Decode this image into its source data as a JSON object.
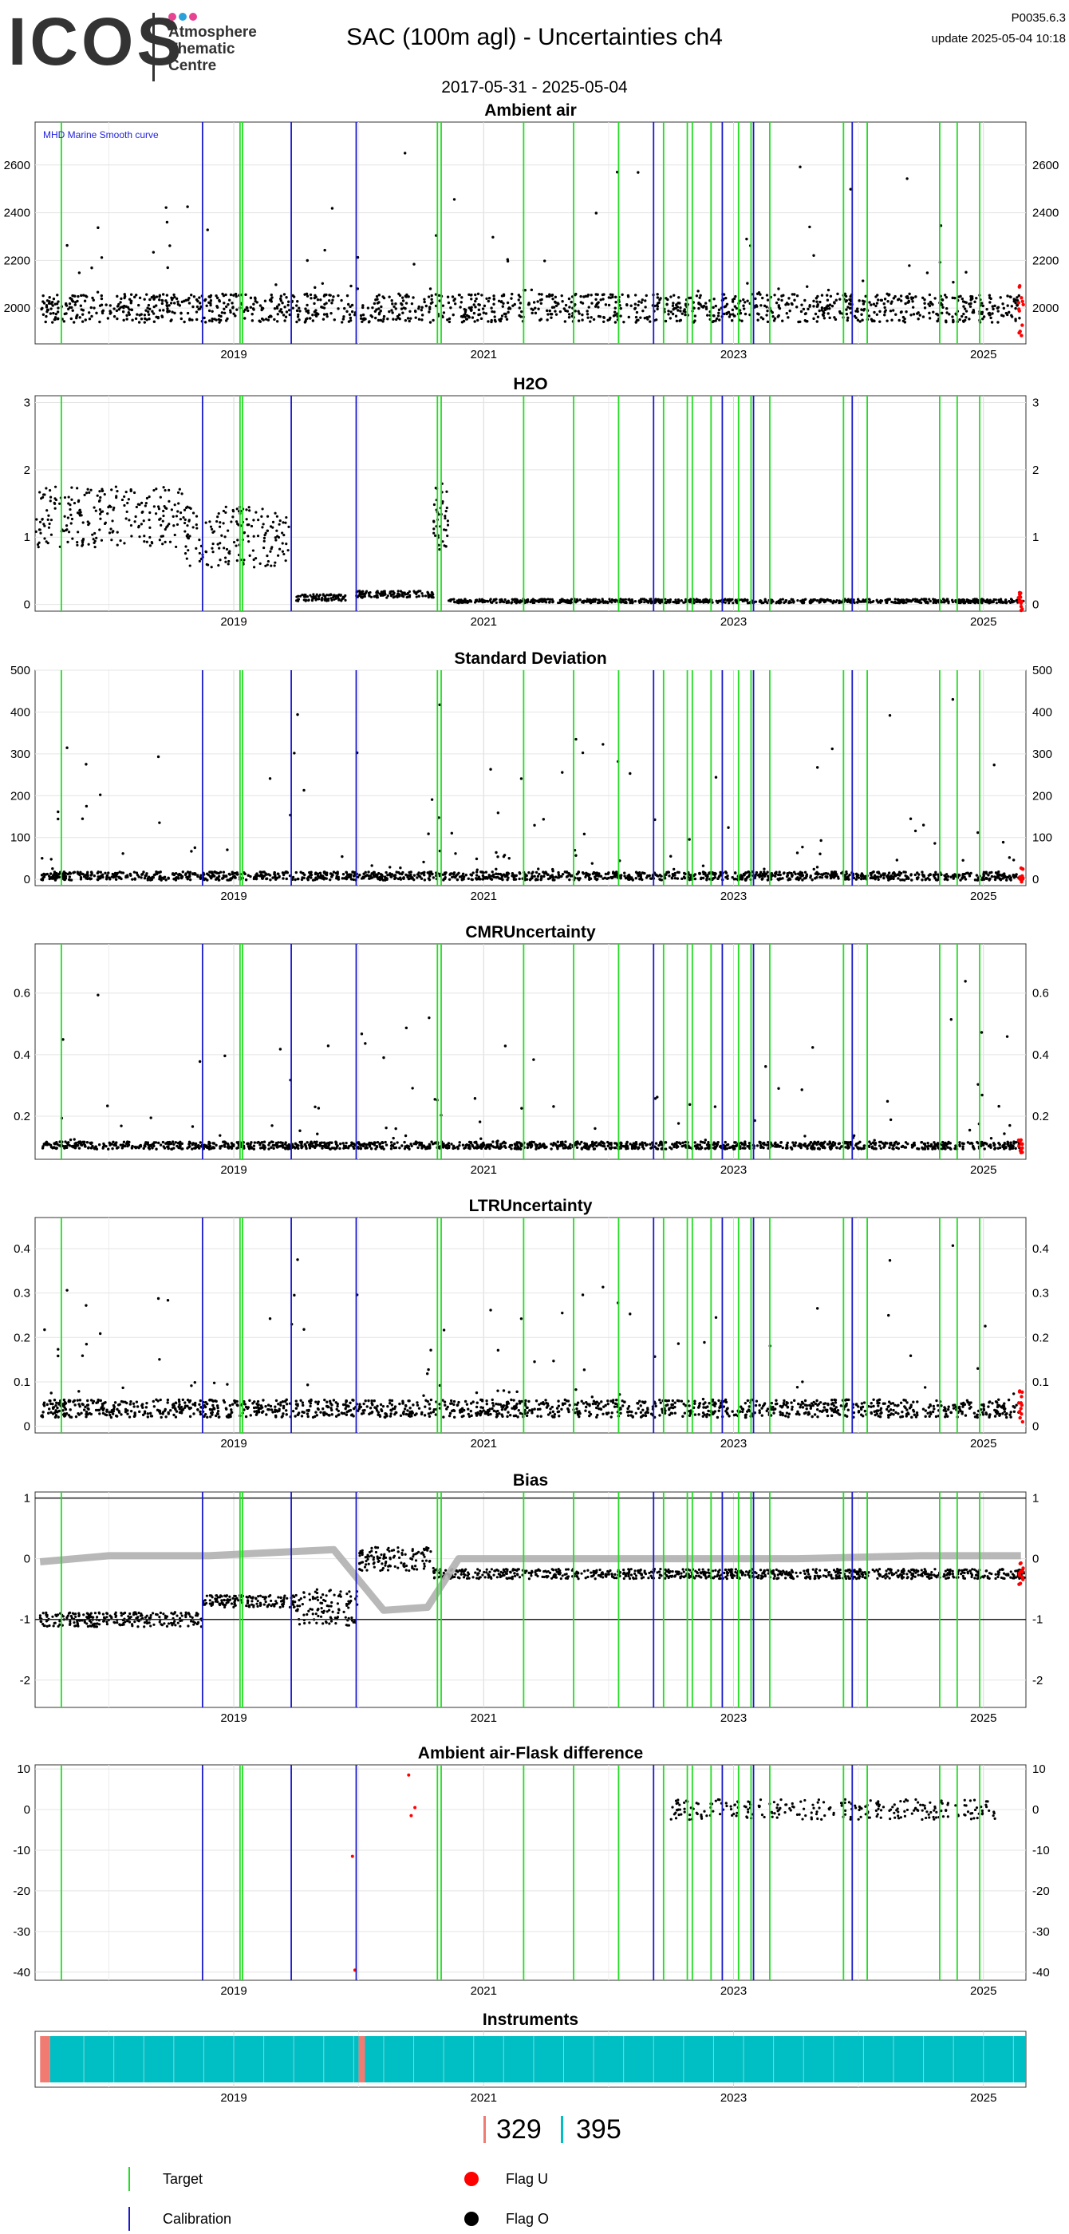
{
  "header": {
    "logo": "ICOS",
    "logo_sub": [
      "Atmosphere",
      "Thematic",
      "Centre"
    ],
    "logo_dots": [
      "#e84393",
      "#2aa1d9",
      "#e84393"
    ],
    "title": "SAC  (100m agl) - Uncertainties ch4",
    "subtitle": "2017-05-31 - 2025-05-04",
    "version": "P0035.6.3",
    "update": "update  2025-05-04 10:18"
  },
  "colors": {
    "target": "#22dd22",
    "calibration": "#1a1acc",
    "flag_u": "#ff0000",
    "flag_o": "#000000",
    "instrument_a": "#f07b72",
    "instrument_b": "#00bfc4",
    "smooth": "#b0b0b0"
  },
  "chart_data": [
    {
      "type": "scatter",
      "title": "Ambient air",
      "annotation": "MHD Marine Smooth curve",
      "xlim": [
        2017.41,
        2025.34
      ],
      "xticks": [
        "2019",
        "2021",
        "2023",
        "2025"
      ],
      "ylim": [
        1850,
        2780
      ],
      "yticks": [
        2000,
        2200,
        2400,
        2600
      ],
      "baseline": 2000,
      "noise": 60,
      "spike_max": 2750,
      "target_lines": [
        2017.62,
        2019.05,
        2019.07,
        2020.63,
        2020.66,
        2021.32,
        2021.72,
        2022.08,
        2022.44,
        2022.63,
        2022.67,
        2022.82,
        2023.04,
        2023.14,
        2023.29,
        2023.88,
        2024.07,
        2024.65,
        2024.79,
        2024.97
      ],
      "calibration_lines": [
        2018.75,
        2019.46,
        2019.98,
        2022.36,
        2022.91,
        2023.16,
        2023.95
      ]
    },
    {
      "type": "scatter",
      "title": "H2O",
      "xlim": [
        2017.41,
        2025.34
      ],
      "xticks": [
        "2019",
        "2021",
        "2023",
        "2025"
      ],
      "ylim": [
        -0.1,
        3.1
      ],
      "yticks": [
        0,
        1,
        2,
        3
      ],
      "segments": [
        {
          "from": 2017.41,
          "to": 2018.6,
          "level": 1.3,
          "spread": 0.45
        },
        {
          "from": 2018.6,
          "to": 2019.45,
          "level": 1.0,
          "spread": 0.45
        },
        {
          "from": 2019.5,
          "to": 2019.9,
          "level": 0.1,
          "spread": 0.05
        },
        {
          "from": 2019.98,
          "to": 2020.6,
          "level": 0.15,
          "spread": 0.05
        },
        {
          "from": 2020.6,
          "to": 2020.72,
          "level": 1.3,
          "spread": 0.5
        },
        {
          "from": 2020.72,
          "to": 2025.34,
          "level": 0.05,
          "spread": 0.03
        }
      ],
      "target_lines": [
        2017.62,
        2019.05,
        2019.07,
        2020.63,
        2020.66,
        2021.32,
        2021.72,
        2022.08,
        2022.44,
        2022.63,
        2022.67,
        2022.82,
        2023.04,
        2023.14,
        2023.29,
        2023.88,
        2024.07,
        2024.65,
        2024.79,
        2024.97
      ],
      "calibration_lines": [
        2018.75,
        2019.46,
        2019.98,
        2022.36,
        2022.91,
        2023.16,
        2023.95
      ]
    },
    {
      "type": "scatter",
      "title": "Standard Deviation",
      "xlim": [
        2017.41,
        2025.34
      ],
      "xticks": [
        "2019",
        "2021",
        "2023",
        "2025"
      ],
      "ylim": [
        -15,
        500
      ],
      "yticks": [
        0,
        100,
        200,
        300,
        400,
        500
      ],
      "baseline": 8,
      "noise": 10,
      "spike_max": 480,
      "target_lines": [
        2017.62,
        2019.05,
        2019.07,
        2020.63,
        2020.66,
        2021.32,
        2021.72,
        2022.08,
        2022.44,
        2022.63,
        2022.67,
        2022.82,
        2023.04,
        2023.14,
        2023.29,
        2023.88,
        2024.07,
        2024.65,
        2024.79,
        2024.97
      ],
      "calibration_lines": [
        2018.75,
        2019.46,
        2019.98,
        2022.36,
        2022.91,
        2023.16,
        2023.95
      ]
    },
    {
      "type": "scatter",
      "title": "CMRUncertainty",
      "xlim": [
        2017.41,
        2025.34
      ],
      "xticks": [
        "2019",
        "2021",
        "2023",
        "2025"
      ],
      "ylim": [
        0.06,
        0.76
      ],
      "yticks": [
        0.2,
        0.4,
        0.6
      ],
      "baseline": 0.105,
      "noise": 0.012,
      "spike_max": 0.7,
      "target_lines": [
        2017.62,
        2019.05,
        2019.07,
        2020.63,
        2020.66,
        2021.32,
        2021.72,
        2022.08,
        2022.44,
        2022.63,
        2022.67,
        2022.82,
        2023.04,
        2023.14,
        2023.29,
        2023.88,
        2024.07,
        2024.65,
        2024.79,
        2024.97
      ],
      "calibration_lines": [
        2018.75,
        2019.46,
        2019.98,
        2022.36,
        2022.91,
        2023.16,
        2023.95
      ]
    },
    {
      "type": "scatter",
      "title": "LTRUncertainty",
      "xlim": [
        2017.41,
        2025.34
      ],
      "xticks": [
        "2019",
        "2021",
        "2023",
        "2025"
      ],
      "ylim": [
        -0.015,
        0.47
      ],
      "yticks": [
        0.0,
        0.1,
        0.2,
        0.3,
        0.4
      ],
      "baseline": 0.04,
      "noise": 0.02,
      "spike_max": 0.45,
      "target_lines": [
        2017.62,
        2019.05,
        2019.07,
        2020.63,
        2020.66,
        2021.32,
        2021.72,
        2022.08,
        2022.44,
        2022.63,
        2022.67,
        2022.82,
        2023.04,
        2023.14,
        2023.29,
        2023.88,
        2024.07,
        2024.65,
        2024.79,
        2024.97
      ],
      "calibration_lines": [
        2018.75,
        2019.46,
        2019.98,
        2022.36,
        2022.91,
        2023.16,
        2023.95
      ]
    },
    {
      "type": "scatter",
      "title": "Bias",
      "xlim": [
        2017.41,
        2025.34
      ],
      "xticks": [
        "2019",
        "2021",
        "2023",
        "2025"
      ],
      "ylim": [
        -2.45,
        1.1
      ],
      "yticks": [
        -2,
        -1,
        0,
        1
      ],
      "hlines": [
        1,
        -1
      ],
      "segments": [
        {
          "from": 2017.45,
          "to": 2018.75,
          "level": -1.0,
          "spread": 0.12
        },
        {
          "from": 2018.75,
          "to": 2019.5,
          "level": -0.7,
          "spread": 0.1
        },
        {
          "from": 2019.5,
          "to": 2020.0,
          "level": -0.8,
          "spread": 0.3
        },
        {
          "from": 2020.0,
          "to": 2020.6,
          "level": 0.0,
          "spread": 0.2
        },
        {
          "from": 2020.6,
          "to": 2025.34,
          "level": -0.25,
          "spread": 0.08
        }
      ],
      "smooth_curve": [
        [
          2017.45,
          -0.05
        ],
        [
          2018.0,
          0.05
        ],
        [
          2018.8,
          0.05
        ],
        [
          2019.3,
          0.1
        ],
        [
          2019.8,
          0.15
        ],
        [
          2020.2,
          -0.85
        ],
        [
          2020.55,
          -0.8
        ],
        [
          2020.8,
          0.0
        ],
        [
          2021.5,
          0.0
        ],
        [
          2022.5,
          0.0
        ],
        [
          2023.5,
          0.0
        ],
        [
          2024.5,
          0.05
        ],
        [
          2025.3,
          0.05
        ]
      ],
      "target_lines": [
        2017.62,
        2019.05,
        2019.07,
        2020.63,
        2020.66,
        2021.32,
        2021.72,
        2022.08,
        2022.44,
        2022.63,
        2022.67,
        2022.82,
        2023.04,
        2023.14,
        2023.29,
        2023.88,
        2024.07,
        2024.65,
        2024.79,
        2024.97
      ],
      "calibration_lines": [
        2018.75,
        2019.46,
        2019.98,
        2022.36,
        2022.91,
        2023.16,
        2023.95
      ]
    },
    {
      "type": "scatter",
      "title": "Ambient air-Flask difference",
      "xlim": [
        2017.41,
        2025.34
      ],
      "xticks": [
        "2019",
        "2021",
        "2023",
        "2025"
      ],
      "ylim": [
        -42,
        11
      ],
      "yticks": [
        -40,
        -30,
        -20,
        -10,
        0,
        10
      ],
      "flask_range": [
        2022.5,
        2025.1
      ],
      "flask_red_points": [
        [
          2019.95,
          -11.5
        ],
        [
          2019.97,
          -39.5
        ],
        [
          2020.4,
          8.5
        ],
        [
          2020.42,
          -1.5
        ],
        [
          2020.45,
          0.5
        ]
      ],
      "target_lines": [
        2017.62,
        2019.05,
        2019.07,
        2020.63,
        2020.66,
        2021.32,
        2021.72,
        2022.08,
        2022.44,
        2022.63,
        2022.67,
        2022.82,
        2023.04,
        2023.14,
        2023.29,
        2023.88,
        2024.07,
        2024.65,
        2024.79,
        2024.97
      ],
      "calibration_lines": [
        2018.75,
        2019.46,
        2019.98,
        2022.36,
        2022.91,
        2023.16,
        2023.95
      ]
    },
    {
      "type": "bar",
      "title": "Instruments",
      "xlim": [
        2017.41,
        2025.34
      ],
      "xticks": [
        "2019",
        "2021",
        "2023",
        "2025"
      ],
      "periods": [
        {
          "from": 2017.45,
          "to": 2017.53,
          "instrument": "329"
        },
        {
          "from": 2017.53,
          "to": 2020.0,
          "instrument": "395"
        },
        {
          "from": 2020.0,
          "to": 2020.05,
          "instrument": "329"
        },
        {
          "from": 2020.05,
          "to": 2025.34,
          "instrument": "395"
        }
      ]
    }
  ],
  "legend": {
    "instruments": [
      "329",
      "395"
    ],
    "target": "Target",
    "calibration": "Calibration",
    "flag_u": "Flag U",
    "flag_o": "Flag O"
  }
}
